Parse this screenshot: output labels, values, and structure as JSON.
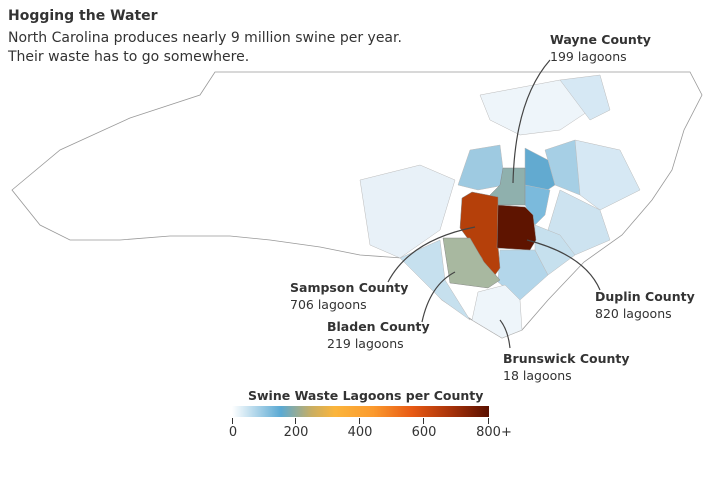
{
  "title": "Hogging the Water",
  "subtitle_lines": [
    "North Carolina produces nearly 9 million swine per year.",
    "Their waste has to go somewhere."
  ],
  "counties": [
    {
      "name": "Wayne County",
      "value": "199 lagoons"
    },
    {
      "name": "Sampson County",
      "value": "706 lagoons"
    },
    {
      "name": "Bladen County",
      "value": "219 lagoons"
    },
    {
      "name": "Duplin County",
      "value": "820 lagoons"
    },
    {
      "name": "Brunswick County",
      "value": "18 lagoons"
    }
  ],
  "legend": {
    "title": "Swine Waste Lagoons per County",
    "ticks": [
      "0",
      "200",
      "400",
      "600",
      "800+"
    ]
  },
  "colors": {
    "duplin": "#5e1400",
    "sampson": "#b5400a",
    "wayne": "#8fb0ad",
    "bladen": "#a8b8a0",
    "high_blue": "#5aa9d3"
  }
}
